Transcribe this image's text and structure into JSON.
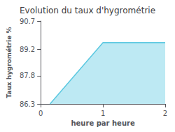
{
  "chart_data": {
    "type": "area",
    "title": "Evolution du taux d'hygrométrie",
    "xlabel": "heure par heure",
    "ylabel": "Taux hygrométrie %",
    "x": [
      0.15,
      1.0,
      2.0
    ],
    "values": [
      86.3,
      89.55,
      89.55
    ],
    "xlim": [
      0,
      2
    ],
    "ylim": [
      86.3,
      90.7
    ],
    "xticks": [
      0,
      1,
      2
    ],
    "yticks": [
      86.3,
      87.8,
      89.2,
      90.7
    ],
    "color": "#5bc8e0",
    "grid": false
  }
}
